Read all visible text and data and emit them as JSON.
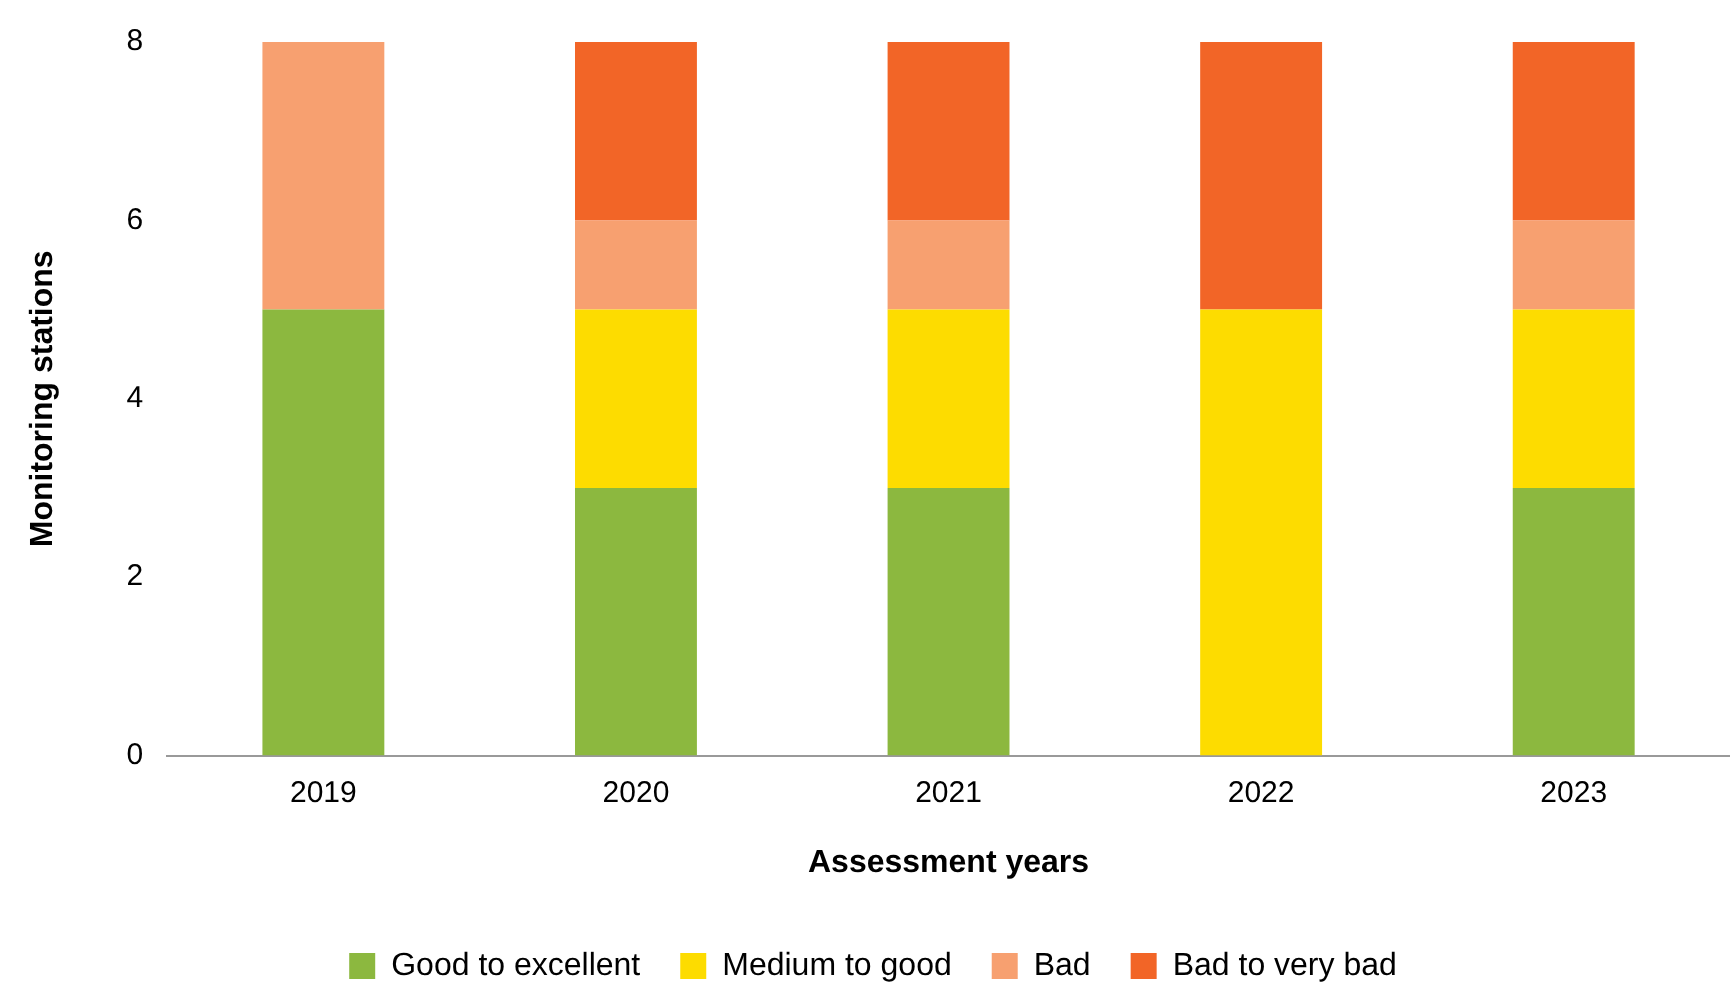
{
  "chart_data": {
    "type": "bar",
    "stacked": true,
    "xlabel": "Assessment years",
    "ylabel": "Monitoring stations",
    "categories": [
      "2019",
      "2020",
      "2021",
      "2022",
      "2023"
    ],
    "series": [
      {
        "name": "Good to excellent",
        "color": "#8cb83f",
        "values": [
          5,
          3,
          3,
          0,
          3
        ]
      },
      {
        "name": "Medium to good",
        "color": "#fddc00",
        "values": [
          0,
          2,
          2,
          5,
          2
        ]
      },
      {
        "name": "Bad",
        "color": "#f7a070",
        "values": [
          3,
          1,
          1,
          0,
          1
        ]
      },
      {
        "name": "Bad to very bad",
        "color": "#f26527",
        "values": [
          0,
          2,
          2,
          3,
          2
        ]
      }
    ],
    "ylim": [
      0,
      8
    ],
    "yticks": [
      0,
      2,
      4,
      6,
      8
    ],
    "grid": false,
    "legend": "bottom"
  }
}
